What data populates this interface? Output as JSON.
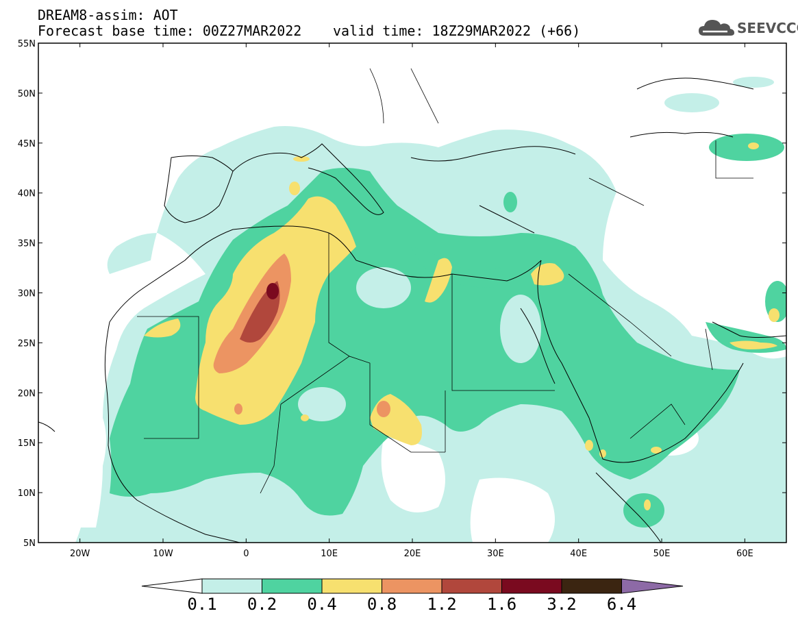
{
  "header": {
    "line1": "DREAM8-assim: AOT",
    "line2": "Forecast base time: 00Z27MAR2022",
    "line2b": "valid time: 18Z29MAR2022 (+66)"
  },
  "logo": {
    "text": "SEEVCCC",
    "icon": "cloud-icon",
    "color": "#555555"
  },
  "map": {
    "lon_range": [
      -25,
      65
    ],
    "lat_range": [
      5,
      55
    ],
    "lat_ticks": [
      "55N",
      "50N",
      "45N",
      "40N",
      "35N",
      "30N",
      "25N",
      "20N",
      "15N",
      "10N",
      "5N"
    ],
    "lon_ticks": [
      "20W",
      "10W",
      "0",
      "10E",
      "20E",
      "30E",
      "40E",
      "50E",
      "60E"
    ]
  },
  "colorbar": {
    "labels": [
      "0.1",
      "0.2",
      "0.4",
      "0.8",
      "1.2",
      "1.6",
      "3.2",
      "6.4"
    ],
    "colors": [
      "#ffffff",
      "#c4efe8",
      "#4fd3a0",
      "#f7e06f",
      "#ec9462",
      "#b1473c",
      "#7a0a1f",
      "#3b2511",
      "#8d6aa6"
    ]
  }
}
